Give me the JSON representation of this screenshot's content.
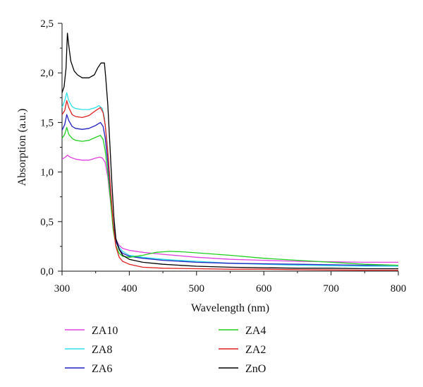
{
  "chart_data": {
    "type": "line",
    "xlabel": "Wavelength (nm)",
    "ylabel": "Absorption (a.u.)",
    "xlim": [
      300,
      800
    ],
    "ylim": [
      0,
      2.5
    ],
    "x_ticks": [
      "300",
      "400",
      "500",
      "600",
      "700",
      "800"
    ],
    "y_ticks": [
      "0,0",
      "0,5",
      "1,0",
      "1,5",
      "2,0",
      "2,5"
    ],
    "grid": false,
    "legend_position": "below",
    "series": [
      {
        "name": "ZA10",
        "color": "#e040e0",
        "points": [
          [
            300,
            1.13
          ],
          [
            305,
            1.15
          ],
          [
            308,
            1.17
          ],
          [
            312,
            1.15
          ],
          [
            320,
            1.13
          ],
          [
            330,
            1.12
          ],
          [
            340,
            1.12
          ],
          [
            350,
            1.14
          ],
          [
            356,
            1.15
          ],
          [
            360,
            1.14
          ],
          [
            364,
            1.1
          ],
          [
            368,
            0.95
          ],
          [
            372,
            0.7
          ],
          [
            376,
            0.45
          ],
          [
            380,
            0.32
          ],
          [
            385,
            0.26
          ],
          [
            390,
            0.23
          ],
          [
            400,
            0.21
          ],
          [
            420,
            0.19
          ],
          [
            450,
            0.17
          ],
          [
            500,
            0.14
          ],
          [
            550,
            0.12
          ],
          [
            600,
            0.11
          ],
          [
            650,
            0.1
          ],
          [
            700,
            0.095
          ],
          [
            750,
            0.09
          ],
          [
            800,
            0.09
          ]
        ]
      },
      {
        "name": "ZA8",
        "color": "#30e0e8",
        "points": [
          [
            300,
            1.65
          ],
          [
            304,
            1.72
          ],
          [
            307,
            1.8
          ],
          [
            310,
            1.72
          ],
          [
            315,
            1.66
          ],
          [
            320,
            1.64
          ],
          [
            330,
            1.63
          ],
          [
            340,
            1.63
          ],
          [
            350,
            1.65
          ],
          [
            355,
            1.67
          ],
          [
            360,
            1.64
          ],
          [
            363,
            1.55
          ],
          [
            367,
            1.3
          ],
          [
            371,
            0.95
          ],
          [
            375,
            0.55
          ],
          [
            380,
            0.32
          ],
          [
            385,
            0.24
          ],
          [
            390,
            0.2
          ],
          [
            400,
            0.16
          ],
          [
            420,
            0.14
          ],
          [
            450,
            0.12
          ],
          [
            500,
            0.1
          ],
          [
            550,
            0.08
          ],
          [
            600,
            0.07
          ],
          [
            650,
            0.06
          ],
          [
            700,
            0.055
          ],
          [
            750,
            0.05
          ],
          [
            800,
            0.05
          ]
        ]
      },
      {
        "name": "ZA6",
        "color": "#2020c0",
        "points": [
          [
            300,
            1.42
          ],
          [
            304,
            1.48
          ],
          [
            307,
            1.58
          ],
          [
            310,
            1.52
          ],
          [
            315,
            1.46
          ],
          [
            320,
            1.44
          ],
          [
            330,
            1.43
          ],
          [
            340,
            1.44
          ],
          [
            350,
            1.47
          ],
          [
            357,
            1.5
          ],
          [
            361,
            1.46
          ],
          [
            364,
            1.35
          ],
          [
            368,
            1.1
          ],
          [
            372,
            0.8
          ],
          [
            376,
            0.48
          ],
          [
            380,
            0.3
          ],
          [
            385,
            0.22
          ],
          [
            390,
            0.18
          ],
          [
            400,
            0.15
          ],
          [
            420,
            0.13
          ],
          [
            450,
            0.11
          ],
          [
            500,
            0.09
          ],
          [
            550,
            0.08
          ],
          [
            600,
            0.075
          ],
          [
            650,
            0.07
          ],
          [
            700,
            0.065
          ],
          [
            750,
            0.06
          ],
          [
            800,
            0.06
          ]
        ]
      },
      {
        "name": "ZA4",
        "color": "#20d020",
        "points": [
          [
            300,
            1.34
          ],
          [
            304,
            1.38
          ],
          [
            307,
            1.45
          ],
          [
            310,
            1.38
          ],
          [
            315,
            1.34
          ],
          [
            320,
            1.32
          ],
          [
            330,
            1.31
          ],
          [
            340,
            1.32
          ],
          [
            350,
            1.35
          ],
          [
            357,
            1.37
          ],
          [
            361,
            1.33
          ],
          [
            364,
            1.22
          ],
          [
            368,
            1.0
          ],
          [
            372,
            0.72
          ],
          [
            376,
            0.42
          ],
          [
            380,
            0.26
          ],
          [
            385,
            0.18
          ],
          [
            390,
            0.15
          ],
          [
            400,
            0.14
          ],
          [
            420,
            0.16
          ],
          [
            440,
            0.19
          ],
          [
            460,
            0.2
          ],
          [
            480,
            0.195
          ],
          [
            500,
            0.185
          ],
          [
            550,
            0.16
          ],
          [
            600,
            0.13
          ],
          [
            650,
            0.11
          ],
          [
            700,
            0.09
          ],
          [
            750,
            0.07
          ],
          [
            800,
            0.06
          ]
        ]
      },
      {
        "name": "ZA2",
        "color": "#e02020",
        "points": [
          [
            300,
            1.58
          ],
          [
            304,
            1.62
          ],
          [
            307,
            1.72
          ],
          [
            310,
            1.65
          ],
          [
            315,
            1.58
          ],
          [
            320,
            1.56
          ],
          [
            330,
            1.55
          ],
          [
            340,
            1.57
          ],
          [
            350,
            1.62
          ],
          [
            357,
            1.65
          ],
          [
            361,
            1.6
          ],
          [
            364,
            1.48
          ],
          [
            368,
            1.2
          ],
          [
            372,
            0.85
          ],
          [
            376,
            0.48
          ],
          [
            380,
            0.25
          ],
          [
            385,
            0.14
          ],
          [
            390,
            0.1
          ],
          [
            400,
            0.07
          ],
          [
            420,
            0.04
          ],
          [
            450,
            0.03
          ],
          [
            500,
            0.025
          ],
          [
            550,
            0.02
          ],
          [
            600,
            0.02
          ],
          [
            650,
            0.015
          ],
          [
            700,
            0.012
          ],
          [
            750,
            0.01
          ],
          [
            800,
            0.01
          ]
        ]
      },
      {
        "name": "ZnO",
        "color": "#000000",
        "points": [
          [
            300,
            1.8
          ],
          [
            303,
            1.86
          ],
          [
            306,
            2.05
          ],
          [
            308,
            2.4
          ],
          [
            310,
            2.28
          ],
          [
            313,
            2.12
          ],
          [
            318,
            2.02
          ],
          [
            323,
            1.98
          ],
          [
            330,
            1.95
          ],
          [
            340,
            1.95
          ],
          [
            348,
            1.98
          ],
          [
            353,
            2.05
          ],
          [
            358,
            2.1
          ],
          [
            363,
            2.1
          ],
          [
            365,
            1.95
          ],
          [
            368,
            1.68
          ],
          [
            371,
            1.3
          ],
          [
            374,
            0.9
          ],
          [
            377,
            0.55
          ],
          [
            380,
            0.33
          ],
          [
            385,
            0.22
          ],
          [
            390,
            0.16
          ],
          [
            400,
            0.12
          ],
          [
            420,
            0.09
          ],
          [
            450,
            0.07
          ],
          [
            500,
            0.05
          ],
          [
            550,
            0.04
          ],
          [
            600,
            0.035
          ],
          [
            650,
            0.03
          ],
          [
            700,
            0.03
          ],
          [
            750,
            0.025
          ],
          [
            800,
            0.025
          ]
        ]
      }
    ]
  }
}
